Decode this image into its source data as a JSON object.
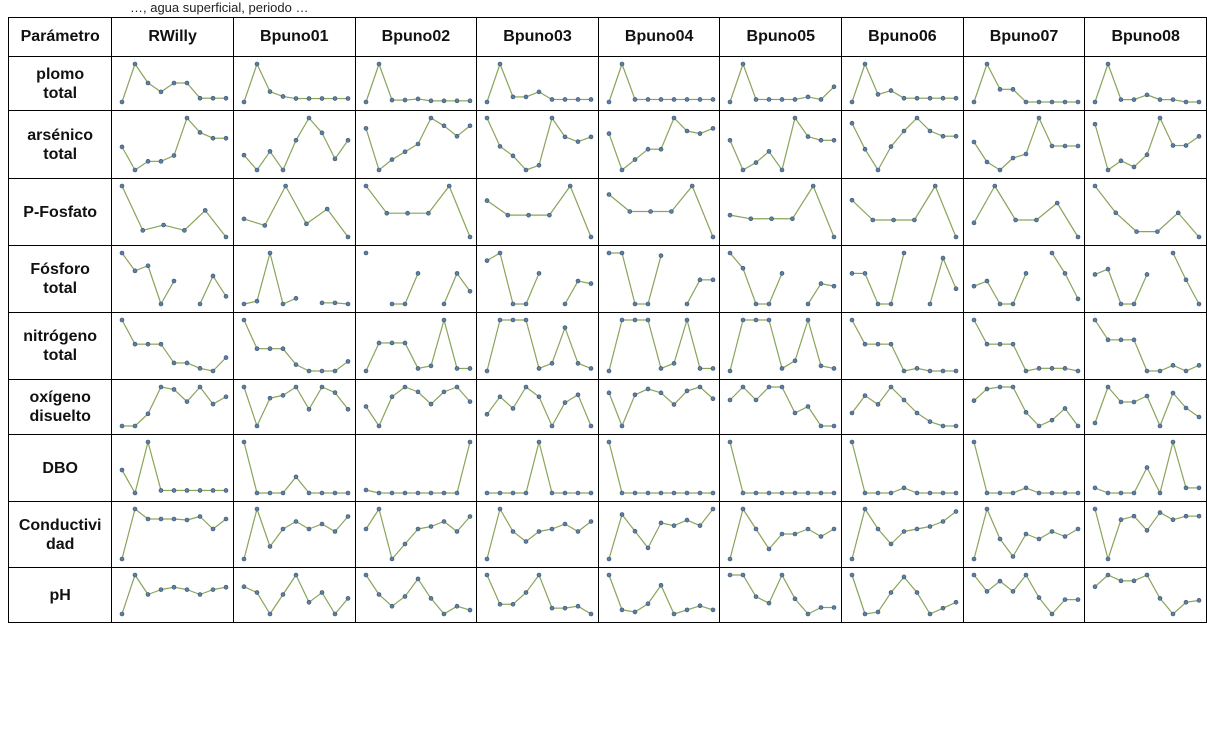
{
  "top_text": "…, agua superficial, periodo …",
  "table": {
    "corner_label": "Parámetro",
    "columns": [
      "RWilly",
      "Bpuno01",
      "Bpuno02",
      "Bpuno03",
      "Bpuno04",
      "Bpuno05",
      "Bpuno06",
      "Bpuno07",
      "Bpuno08"
    ]
  },
  "colors": {
    "line": "#8aa45a",
    "marker": "#5b7fa3",
    "marker_stroke": "#39506b",
    "border": "#000000"
  },
  "chart_data": {
    "type": "line",
    "subtype": "sparkline-grid",
    "row_labels": [
      "plomo\ntotal",
      "arsénico\ntotal",
      "P-Fosfato",
      "Fósforo\ntotal",
      "nitrógeno\ntotal",
      "oxígeno\ndisuelto",
      "DBO",
      "Conductivi\ndad",
      "pH"
    ],
    "column_labels": [
      "RWilly",
      "Bpuno01",
      "Bpuno02",
      "Bpuno03",
      "Bpuno04",
      "Bpuno05",
      "Bpuno06",
      "Bpuno07",
      "Bpuno08"
    ],
    "y_scale": "relative (0 = lowest, 1 = highest within cell)",
    "values": [
      [
        [
          0.0,
          0.3,
          0.15,
          0.08,
          0.15,
          0.15,
          0.03,
          0.03,
          0.03
        ],
        [
          0.0,
          0.55,
          0.15,
          0.08,
          0.05,
          0.05,
          0.05,
          0.05,
          0.05
        ],
        [
          0.0,
          1.0,
          0.05,
          0.05,
          0.08,
          0.03,
          0.03,
          0.03,
          0.03
        ],
        [
          0.0,
          0.75,
          0.1,
          0.1,
          0.2,
          0.05,
          0.05,
          0.05,
          0.05
        ],
        [
          0.0,
          0.75,
          0.05,
          0.05,
          0.05,
          0.05,
          0.05,
          0.05,
          0.05
        ],
        [
          0.0,
          0.75,
          0.05,
          0.05,
          0.05,
          0.05,
          0.1,
          0.05,
          0.3
        ],
        [
          0.0,
          0.5,
          0.1,
          0.15,
          0.05,
          0.05,
          0.05,
          0.05,
          0.05
        ],
        [
          0.2,
          0.35,
          0.25,
          0.25,
          0.2,
          0.2,
          0.2,
          0.2,
          0.2
        ],
        [
          0.0,
          0.8,
          0.05,
          0.05,
          0.15,
          0.05,
          0.05,
          0.0,
          0.0
        ]
      ],
      [
        [
          0.5,
          0.1,
          0.25,
          0.25,
          0.35,
          1.0,
          0.75,
          0.65,
          0.65
        ],
        [
          0.5,
          0.3,
          0.55,
          0.3,
          0.7,
          1.0,
          0.8,
          0.45,
          0.7
        ],
        [
          0.8,
          0.0,
          0.2,
          0.35,
          0.5,
          1.0,
          0.85,
          0.65,
          0.85
        ],
        [
          1.0,
          0.7,
          0.6,
          0.45,
          0.5,
          1.0,
          0.8,
          0.75,
          0.8
        ],
        [
          0.7,
          0.0,
          0.2,
          0.4,
          0.4,
          1.0,
          0.75,
          0.7,
          0.8
        ],
        [
          0.7,
          0.3,
          0.4,
          0.55,
          0.3,
          1.0,
          0.75,
          0.7,
          0.7
        ],
        [
          0.9,
          0.4,
          0.0,
          0.45,
          0.75,
          1.0,
          0.75,
          0.65,
          0.65
        ],
        [
          0.7,
          0.45,
          0.35,
          0.5,
          0.55,
          1.0,
          0.65,
          0.65,
          0.65
        ],
        [
          0.9,
          0.15,
          0.3,
          0.2,
          0.4,
          1.0,
          0.55,
          0.55,
          0.7
        ]
      ],
      [
        [
          1.0,
          0.0,
          0.12,
          0.0,
          0.45,
          -0.15
        ],
        [
          0.0,
          -0.2,
          1.0,
          -0.15,
          0.3,
          -0.55
        ],
        [
          1.0,
          0.6,
          0.6,
          0.6,
          1.0,
          0.25
        ],
        [
          0.7,
          0.5,
          0.5,
          0.5,
          0.9,
          0.2
        ],
        [
          0.85,
          0.55,
          0.55,
          0.55,
          1.0,
          0.1
        ],
        [
          0.6,
          0.55,
          0.55,
          0.55,
          1.0,
          0.3
        ],
        [
          0.75,
          0.4,
          0.4,
          0.4,
          1.0,
          0.1
        ],
        [
          0.35,
          1.0,
          0.4,
          0.4,
          0.7,
          0.1
        ],
        [
          1.0,
          0.5,
          0.15,
          0.15,
          0.5,
          0.05
        ]
      ],
      [
        [
          1.0,
          0.65,
          0.75,
          0.0,
          0.45,
          null,
          0.0,
          0.55,
          0.15
        ],
        [
          0.1,
          0.15,
          1.0,
          0.1,
          0.2,
          null,
          0.12,
          0.12,
          0.1
        ],
        [
          1.0,
          null,
          0.0,
          0.0,
          0.6,
          null,
          0.0,
          0.6,
          0.25
        ],
        [
          0.85,
          1.0,
          0.0,
          0.0,
          0.6,
          null,
          0.0,
          0.45,
          0.4
        ],
        [
          0.95,
          0.95,
          0.0,
          0.0,
          0.9,
          null,
          0.0,
          0.45,
          0.45
        ],
        [
          1.0,
          0.7,
          0.0,
          0.0,
          0.6,
          null,
          0.0,
          0.4,
          0.35
        ],
        [
          0.6,
          0.6,
          0.0,
          0.0,
          1.0,
          null,
          0.0,
          0.9,
          0.3
        ],
        [
          0.35,
          0.45,
          0.0,
          0.0,
          0.6,
          null,
          1.0,
          0.6,
          0.1
        ],
        [
          0.6,
          0.7,
          0.05,
          0.05,
          0.6,
          null,
          1.0,
          0.5,
          0.05
        ]
      ],
      [
        [
          1.0,
          0.55,
          0.55,
          0.55,
          0.2,
          0.2,
          0.1,
          0.05,
          0.3
        ],
        [
          1.0,
          0.55,
          0.55,
          0.55,
          0.3,
          0.2,
          0.2,
          0.2,
          0.35
        ],
        [
          0.0,
          0.55,
          0.55,
          0.55,
          0.05,
          0.1,
          1.0,
          0.05,
          0.05
        ],
        [
          0.0,
          1.0,
          1.0,
          1.0,
          0.05,
          0.15,
          0.85,
          0.15,
          0.05
        ],
        [
          0.0,
          1.0,
          1.0,
          1.0,
          0.05,
          0.15,
          1.0,
          0.05,
          0.05
        ],
        [
          0.0,
          1.0,
          1.0,
          1.0,
          0.05,
          0.2,
          1.0,
          0.1,
          0.05
        ],
        [
          1.0,
          0.55,
          0.55,
          0.55,
          0.05,
          0.1,
          0.05,
          0.05,
          0.05
        ],
        [
          1.0,
          0.55,
          0.55,
          0.55,
          0.05,
          0.1,
          0.1,
          0.1,
          0.05
        ],
        [
          1.0,
          0.65,
          0.65,
          0.65,
          0.1,
          0.1,
          0.2,
          0.1,
          0.2
        ]
      ],
      [
        [
          0.2,
          0.2,
          0.45,
          1.0,
          0.95,
          0.7,
          1.0,
          0.65,
          0.8
        ],
        [
          1.0,
          0.3,
          0.8,
          0.85,
          1.0,
          0.6,
          1.0,
          0.9,
          0.6
        ],
        [
          0.6,
          0.2,
          0.8,
          1.0,
          0.9,
          0.65,
          0.9,
          1.0,
          0.7
        ],
        [
          0.3,
          0.75,
          0.45,
          1.0,
          0.75,
          0.0,
          0.6,
          0.8,
          0.0
        ],
        [
          0.85,
          0.0,
          0.8,
          0.95,
          0.85,
          0.55,
          0.9,
          1.0,
          0.7
        ],
        [
          0.9,
          1.0,
          0.9,
          1.0,
          1.0,
          0.8,
          0.85,
          0.7,
          0.7
        ],
        [
          0.7,
          0.9,
          0.8,
          1.0,
          0.85,
          0.7,
          0.6,
          0.55,
          0.55
        ],
        [
          0.65,
          0.95,
          1.0,
          1.0,
          0.35,
          0.0,
          0.15,
          0.45,
          0.0
        ],
        [
          0.25,
          0.85,
          0.6,
          0.6,
          0.7,
          0.2,
          0.75,
          0.5,
          0.35
        ]
      ],
      [
        [
          0.45,
          0.0,
          1.0,
          0.05,
          0.05,
          0.05,
          0.05,
          0.05,
          0.05
        ],
        [
          1.0,
          0.05,
          0.05,
          0.05,
          0.35,
          0.05,
          0.05,
          0.05,
          0.05
        ],
        [
          0.2,
          0.15,
          0.15,
          0.15,
          0.15,
          0.15,
          0.15,
          0.15,
          1.0
        ],
        [
          0.0,
          0.0,
          0.0,
          0.0,
          1.0,
          0.0,
          0.0,
          0.0,
          0.0
        ],
        [
          1.0,
          0.5,
          0.5,
          0.5,
          0.5,
          0.5,
          0.5,
          0.5,
          0.5
        ],
        [
          1.0,
          0.5,
          0.5,
          0.5,
          0.5,
          0.5,
          0.5,
          0.5,
          0.5
        ],
        [
          1.0,
          0.5,
          0.5,
          0.5,
          0.55,
          0.5,
          0.5,
          0.5,
          0.5
        ],
        [
          1.0,
          0.5,
          0.5,
          0.5,
          0.55,
          0.5,
          0.5,
          0.5,
          0.5
        ],
        [
          0.1,
          0.0,
          0.0,
          0.0,
          0.5,
          0.0,
          1.0,
          0.1,
          0.1
        ]
      ],
      [
        [
          0.0,
          1.0,
          0.8,
          0.8,
          0.8,
          0.78,
          0.85,
          0.6,
          0.8
        ],
        [
          0.0,
          1.0,
          0.25,
          0.6,
          0.75,
          0.6,
          0.7,
          0.55,
          0.85
        ],
        [
          0.6,
          1.0,
          0.0,
          0.3,
          0.6,
          0.65,
          0.75,
          0.55,
          0.85
        ],
        [
          0.0,
          1.0,
          0.55,
          0.35,
          0.55,
          0.6,
          0.7,
          0.55,
          0.75
        ],
        [
          0.0,
          0.8,
          0.5,
          0.2,
          0.65,
          0.6,
          0.7,
          0.6,
          0.9
        ],
        [
          0.0,
          1.0,
          0.6,
          0.2,
          0.5,
          0.5,
          0.6,
          0.45,
          0.6
        ],
        [
          0.0,
          1.0,
          0.6,
          0.3,
          0.55,
          0.6,
          0.65,
          0.75,
          0.95
        ],
        [
          0.0,
          1.0,
          0.4,
          0.05,
          0.5,
          0.4,
          0.55,
          0.45,
          0.6
        ],
        [
          1.0,
          0.3,
          0.85,
          0.9,
          0.7,
          0.95,
          0.85,
          0.9,
          0.9
        ]
      ],
      [
        [
          0.2,
          1.0,
          0.6,
          0.7,
          0.75,
          0.7,
          0.6,
          0.7,
          0.75
        ],
        [
          0.7,
          0.55,
          0.0,
          0.5,
          1.0,
          0.3,
          0.55,
          0.0,
          0.4
        ],
        [
          1.0,
          0.5,
          0.2,
          0.45,
          0.9,
          0.4,
          0.0,
          0.2,
          0.1
        ],
        [
          1.0,
          0.25,
          0.25,
          0.55,
          1.0,
          0.15,
          0.15,
          0.2,
          0.0
        ],
        [
          1.0,
          0.15,
          0.1,
          0.3,
          0.75,
          0.05,
          0.15,
          0.25,
          0.15
        ],
        [
          0.95,
          0.95,
          0.45,
          0.3,
          0.95,
          0.4,
          0.05,
          0.2,
          0.2
        ],
        [
          1.0,
          0.0,
          0.05,
          0.55,
          0.95,
          0.55,
          0.0,
          0.15,
          0.3
        ],
        [
          1.0,
          0.6,
          0.85,
          0.6,
          1.0,
          0.45,
          0.05,
          0.4,
          0.4
        ],
        [
          0.7,
          1.0,
          0.85,
          0.85,
          1.0,
          0.4,
          0.0,
          0.3,
          0.35
        ]
      ]
    ]
  }
}
